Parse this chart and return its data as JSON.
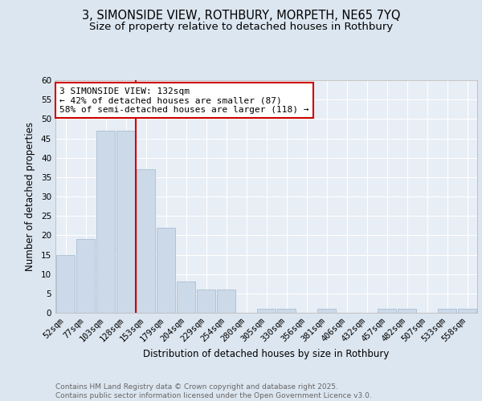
{
  "title_line1": "3, SIMONSIDE VIEW, ROTHBURY, MORPETH, NE65 7YQ",
  "title_line2": "Size of property relative to detached houses in Rothbury",
  "xlabel": "Distribution of detached houses by size in Rothbury",
  "ylabel": "Number of detached properties",
  "categories": [
    "52sqm",
    "77sqm",
    "103sqm",
    "128sqm",
    "153sqm",
    "179sqm",
    "204sqm",
    "229sqm",
    "254sqm",
    "280sqm",
    "305sqm",
    "330sqm",
    "356sqm",
    "381sqm",
    "406sqm",
    "432sqm",
    "457sqm",
    "482sqm",
    "507sqm",
    "533sqm",
    "558sqm"
  ],
  "values": [
    15,
    19,
    47,
    47,
    37,
    22,
    8,
    6,
    6,
    0,
    1,
    1,
    0,
    1,
    0,
    0,
    1,
    1,
    0,
    1,
    1
  ],
  "bar_color": "#ccd9e8",
  "bar_edgecolor": "#a8bfd4",
  "vline_pos": 3.5,
  "vline_color": "#cc0000",
  "annotation_text": "3 SIMONSIDE VIEW: 132sqm\n← 42% of detached houses are smaller (87)\n58% of semi-detached houses are larger (118) →",
  "annotation_box_facecolor": "#ffffff",
  "annotation_box_edgecolor": "#cc0000",
  "ylim": [
    0,
    60
  ],
  "yticks": [
    0,
    5,
    10,
    15,
    20,
    25,
    30,
    35,
    40,
    45,
    50,
    55,
    60
  ],
  "footnote": "Contains HM Land Registry data © Crown copyright and database right 2025.\nContains public sector information licensed under the Open Government Licence v3.0.",
  "bg_color": "#dce6f0",
  "plot_bg_color": "#e8eef5",
  "grid_color": "#ffffff",
  "title_fontsize": 10.5,
  "subtitle_fontsize": 9.5,
  "axis_label_fontsize": 8.5,
  "tick_fontsize": 7.5,
  "annotation_fontsize": 8,
  "footnote_fontsize": 6.5
}
